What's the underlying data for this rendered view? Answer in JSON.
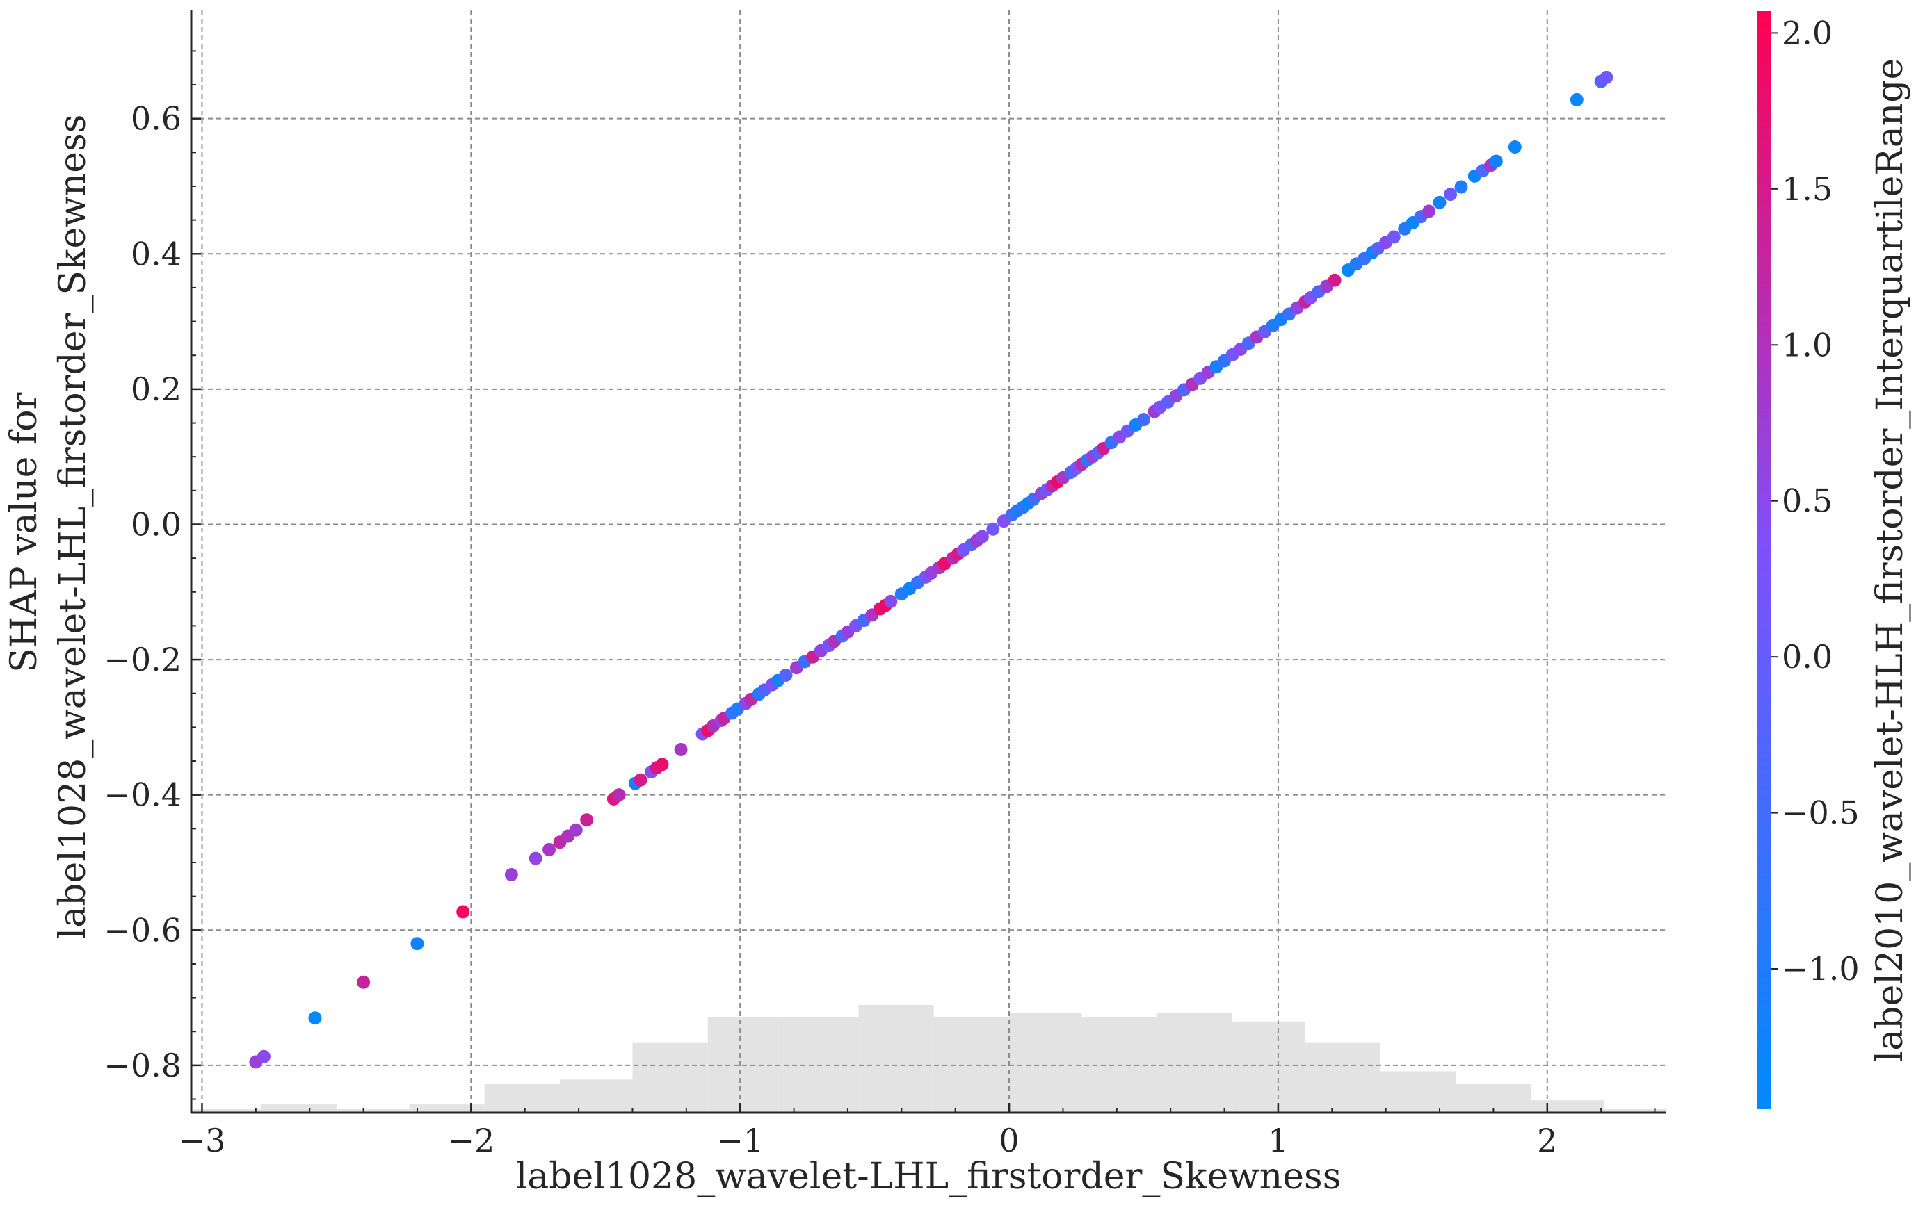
{
  "chart_data": {
    "type": "scatter",
    "xlabel": "label1028_wavelet-LHL_firstorder_Skewness",
    "ylabel_line1": "SHAP value for",
    "ylabel_line2": "label1028_wavelet-LHL_firstorder_Skewness",
    "xlim": [
      -3.04,
      2.44
    ],
    "ylim": [
      -0.87,
      0.76
    ],
    "x_ticks": [
      -3,
      -2,
      -1,
      0,
      1,
      2
    ],
    "x_tick_labels": [
      "−3",
      "−2",
      "−1",
      "0",
      "1",
      "2"
    ],
    "y_ticks": [
      -0.8,
      -0.6,
      -0.4,
      -0.2,
      0.0,
      0.2,
      0.4,
      0.6
    ],
    "y_tick_labels": [
      "−0.8",
      "−0.6",
      "−0.4",
      "−0.2",
      "0.0",
      "0.2",
      "0.4",
      "0.6"
    ],
    "grid": true,
    "colorbar": {
      "label": "label2010_wavelet-HLH_firstorder_InterquartileRange",
      "range": [
        -1.45,
        2.07
      ],
      "ticks": [
        -1.0,
        -0.5,
        0.0,
        0.5,
        1.0,
        1.5,
        2.0
      ],
      "tick_labels": [
        "−1.0",
        "−0.5",
        "0.0",
        "0.5",
        "1.0",
        "1.5",
        "2.0"
      ],
      "colors": [
        "#008afb",
        "#7c52ff",
        "#ff0052"
      ]
    },
    "points": [
      {
        "x": -2.8,
        "y": -0.795,
        "c": 0.7
      },
      {
        "x": -2.77,
        "y": -0.787,
        "c": 0.5
      },
      {
        "x": -2.58,
        "y": -0.73,
        "c": -1.4
      },
      {
        "x": -2.4,
        "y": -0.677,
        "c": 1.3
      },
      {
        "x": -2.2,
        "y": -0.62,
        "c": -1.2
      },
      {
        "x": -2.03,
        "y": -0.573,
        "c": 1.9
      },
      {
        "x": -1.85,
        "y": -0.518,
        "c": 0.7
      },
      {
        "x": -1.76,
        "y": -0.494,
        "c": 0.6
      },
      {
        "x": -1.71,
        "y": -0.481,
        "c": 0.9
      },
      {
        "x": -1.67,
        "y": -0.47,
        "c": 1.2
      },
      {
        "x": -1.64,
        "y": -0.461,
        "c": 1.0
      },
      {
        "x": -1.61,
        "y": -0.452,
        "c": 0.8
      },
      {
        "x": -1.57,
        "y": -0.437,
        "c": 1.4
      },
      {
        "x": -1.47,
        "y": -0.406,
        "c": 1.6
      },
      {
        "x": -1.45,
        "y": -0.4,
        "c": 1.1
      },
      {
        "x": -1.39,
        "y": -0.383,
        "c": -1.2
      },
      {
        "x": -1.37,
        "y": -0.378,
        "c": 1.5
      },
      {
        "x": -1.33,
        "y": -0.366,
        "c": 0.4
      },
      {
        "x": -1.31,
        "y": -0.36,
        "c": 1.6
      },
      {
        "x": -1.29,
        "y": -0.355,
        "c": 1.8
      },
      {
        "x": -1.22,
        "y": -0.333,
        "c": 0.9
      },
      {
        "x": -1.14,
        "y": -0.31,
        "c": 0.3
      },
      {
        "x": -1.12,
        "y": -0.305,
        "c": 1.8
      },
      {
        "x": -1.1,
        "y": -0.298,
        "c": 1.0
      },
      {
        "x": -1.07,
        "y": -0.29,
        "c": 0.6
      },
      {
        "x": -1.06,
        "y": -0.287,
        "c": 1.3
      },
      {
        "x": -1.03,
        "y": -0.279,
        "c": -0.6
      },
      {
        "x": -1.01,
        "y": -0.273,
        "c": -1.0
      },
      {
        "x": -0.98,
        "y": -0.265,
        "c": 0.5
      },
      {
        "x": -0.96,
        "y": -0.259,
        "c": 1.2
      },
      {
        "x": -0.93,
        "y": -0.251,
        "c": -0.9
      },
      {
        "x": -0.91,
        "y": -0.245,
        "c": -0.3
      },
      {
        "x": -0.88,
        "y": -0.237,
        "c": 0.4
      },
      {
        "x": -0.86,
        "y": -0.231,
        "c": -1.1
      },
      {
        "x": -0.83,
        "y": -0.223,
        "c": -0.2
      },
      {
        "x": -0.79,
        "y": -0.212,
        "c": 0.8
      },
      {
        "x": -0.76,
        "y": -0.203,
        "c": -0.6
      },
      {
        "x": -0.73,
        "y": -0.196,
        "c": 1.4
      },
      {
        "x": -0.7,
        "y": -0.187,
        "c": 0.6
      },
      {
        "x": -0.67,
        "y": -0.179,
        "c": 0.2
      },
      {
        "x": -0.65,
        "y": -0.173,
        "c": 1.0
      },
      {
        "x": -0.62,
        "y": -0.165,
        "c": -0.4
      },
      {
        "x": -0.6,
        "y": -0.159,
        "c": 0.7
      },
      {
        "x": -0.57,
        "y": -0.15,
        "c": 0.3
      },
      {
        "x": -0.54,
        "y": -0.142,
        "c": -0.5
      },
      {
        "x": -0.51,
        "y": -0.134,
        "c": 0.9
      },
      {
        "x": -0.48,
        "y": -0.125,
        "c": 1.7
      },
      {
        "x": -0.46,
        "y": -0.12,
        "c": 1.9
      },
      {
        "x": -0.44,
        "y": -0.114,
        "c": 0.5
      },
      {
        "x": -0.4,
        "y": -0.103,
        "c": -0.9
      },
      {
        "x": -0.37,
        "y": -0.095,
        "c": -1.3
      },
      {
        "x": -0.34,
        "y": -0.086,
        "c": -0.7
      },
      {
        "x": -0.31,
        "y": -0.078,
        "c": 0.2
      },
      {
        "x": -0.29,
        "y": -0.072,
        "c": 0.6
      },
      {
        "x": -0.26,
        "y": -0.064,
        "c": 0.9
      },
      {
        "x": -0.24,
        "y": -0.058,
        "c": 1.8
      },
      {
        "x": -0.21,
        "y": -0.05,
        "c": 1.2
      },
      {
        "x": -0.19,
        "y": -0.044,
        "c": 1.5
      },
      {
        "x": -0.17,
        "y": -0.038,
        "c": 0.3
      },
      {
        "x": -0.14,
        "y": -0.03,
        "c": -0.2
      },
      {
        "x": -0.12,
        "y": -0.024,
        "c": 0.8
      },
      {
        "x": -0.1,
        "y": -0.018,
        "c": 0.5
      },
      {
        "x": -0.06,
        "y": -0.007,
        "c": 0.1
      },
      {
        "x": -0.02,
        "y": 0.005,
        "c": 0.4
      },
      {
        "x": 0.01,
        "y": 0.014,
        "c": -0.5
      },
      {
        "x": 0.03,
        "y": 0.02,
        "c": -1.0
      },
      {
        "x": 0.05,
        "y": 0.025,
        "c": -0.8
      },
      {
        "x": 0.07,
        "y": 0.031,
        "c": -1.3
      },
      {
        "x": 0.09,
        "y": 0.037,
        "c": -0.6
      },
      {
        "x": 0.12,
        "y": 0.046,
        "c": 0.6
      },
      {
        "x": 0.14,
        "y": 0.051,
        "c": 0.2
      },
      {
        "x": 0.16,
        "y": 0.057,
        "c": 1.2
      },
      {
        "x": 0.18,
        "y": 0.063,
        "c": 1.9
      },
      {
        "x": 0.2,
        "y": 0.069,
        "c": 0.9
      },
      {
        "x": 0.23,
        "y": 0.077,
        "c": -0.4
      },
      {
        "x": 0.25,
        "y": 0.083,
        "c": 0.3
      },
      {
        "x": 0.27,
        "y": 0.089,
        "c": 1.1
      },
      {
        "x": 0.29,
        "y": 0.095,
        "c": -0.9
      },
      {
        "x": 0.31,
        "y": 0.1,
        "c": 0.7
      },
      {
        "x": 0.33,
        "y": 0.106,
        "c": -0.2
      },
      {
        "x": 0.35,
        "y": 0.112,
        "c": 1.4
      },
      {
        "x": 0.38,
        "y": 0.121,
        "c": -0.7
      },
      {
        "x": 0.41,
        "y": 0.129,
        "c": 0.5
      },
      {
        "x": 0.44,
        "y": 0.138,
        "c": 0.1
      },
      {
        "x": 0.47,
        "y": 0.147,
        "c": -1.2
      },
      {
        "x": 0.5,
        "y": 0.155,
        "c": -0.5
      },
      {
        "x": 0.54,
        "y": 0.167,
        "c": 0.8
      },
      {
        "x": 0.56,
        "y": 0.173,
        "c": 0.3
      },
      {
        "x": 0.59,
        "y": 0.181,
        "c": -0.1
      },
      {
        "x": 0.62,
        "y": 0.19,
        "c": 0.6
      },
      {
        "x": 0.65,
        "y": 0.199,
        "c": -0.3
      },
      {
        "x": 0.68,
        "y": 0.207,
        "c": 1.0
      },
      {
        "x": 0.71,
        "y": 0.216,
        "c": 0.4
      },
      {
        "x": 0.74,
        "y": 0.225,
        "c": 0.7
      },
      {
        "x": 0.77,
        "y": 0.233,
        "c": -1.1
      },
      {
        "x": 0.8,
        "y": 0.242,
        "c": -0.8
      },
      {
        "x": 0.83,
        "y": 0.251,
        "c": 0.2
      },
      {
        "x": 0.86,
        "y": 0.259,
        "c": 0.5
      },
      {
        "x": 0.89,
        "y": 0.268,
        "c": -0.4
      },
      {
        "x": 0.92,
        "y": 0.277,
        "c": 0.9
      },
      {
        "x": 0.95,
        "y": 0.285,
        "c": 0.0
      },
      {
        "x": 0.98,
        "y": 0.294,
        "c": -0.9
      },
      {
        "x": 1.01,
        "y": 0.303,
        "c": -1.2
      },
      {
        "x": 1.04,
        "y": 0.311,
        "c": -0.6
      },
      {
        "x": 1.07,
        "y": 0.32,
        "c": 0.6
      },
      {
        "x": 1.1,
        "y": 0.329,
        "c": 1.3
      },
      {
        "x": 1.12,
        "y": 0.335,
        "c": 0.4
      },
      {
        "x": 1.15,
        "y": 0.344,
        "c": -0.3
      },
      {
        "x": 1.18,
        "y": 0.352,
        "c": 0.8
      },
      {
        "x": 1.21,
        "y": 0.361,
        "c": 1.5
      },
      {
        "x": 1.26,
        "y": 0.376,
        "c": -1.3
      },
      {
        "x": 1.29,
        "y": 0.385,
        "c": -1.0
      },
      {
        "x": 1.32,
        "y": 0.393,
        "c": -0.7
      },
      {
        "x": 1.35,
        "y": 0.402,
        "c": -1.2
      },
      {
        "x": 1.37,
        "y": 0.408,
        "c": -0.2
      },
      {
        "x": 1.4,
        "y": 0.417,
        "c": 0.5
      },
      {
        "x": 1.43,
        "y": 0.425,
        "c": 0.2
      },
      {
        "x": 1.47,
        "y": 0.437,
        "c": -0.9
      },
      {
        "x": 1.5,
        "y": 0.446,
        "c": -1.3
      },
      {
        "x": 1.53,
        "y": 0.455,
        "c": -0.5
      },
      {
        "x": 1.56,
        "y": 0.463,
        "c": 0.8
      },
      {
        "x": 1.6,
        "y": 0.476,
        "c": -1.2
      },
      {
        "x": 1.64,
        "y": 0.488,
        "c": 0.1
      },
      {
        "x": 1.68,
        "y": 0.499,
        "c": -1.1
      },
      {
        "x": 1.73,
        "y": 0.515,
        "c": -1.3
      },
      {
        "x": 1.76,
        "y": 0.523,
        "c": -0.4
      },
      {
        "x": 1.79,
        "y": 0.531,
        "c": 0.9
      },
      {
        "x": 1.81,
        "y": 0.537,
        "c": -1.2
      },
      {
        "x": 1.88,
        "y": 0.558,
        "c": -1.3
      },
      {
        "x": 2.11,
        "y": 0.628,
        "c": -1.3
      },
      {
        "x": 2.2,
        "y": 0.655,
        "c": -0.2
      },
      {
        "x": 2.22,
        "y": 0.661,
        "c": 0.1
      }
    ],
    "histogram": {
      "bin_edges": [
        -3.06,
        -2.78,
        -2.5,
        -2.23,
        -1.95,
        -1.67,
        -1.4,
        -1.12,
        -0.84,
        -0.56,
        -0.28,
        0.0,
        0.27,
        0.55,
        0.83,
        1.1,
        1.38,
        1.66,
        1.94,
        2.21,
        2.49
      ],
      "counts": [
        1,
        2,
        1,
        2,
        7,
        8,
        17,
        23,
        23,
        26,
        23,
        24,
        23,
        24,
        22,
        17,
        10,
        7,
        3,
        1
      ]
    }
  }
}
